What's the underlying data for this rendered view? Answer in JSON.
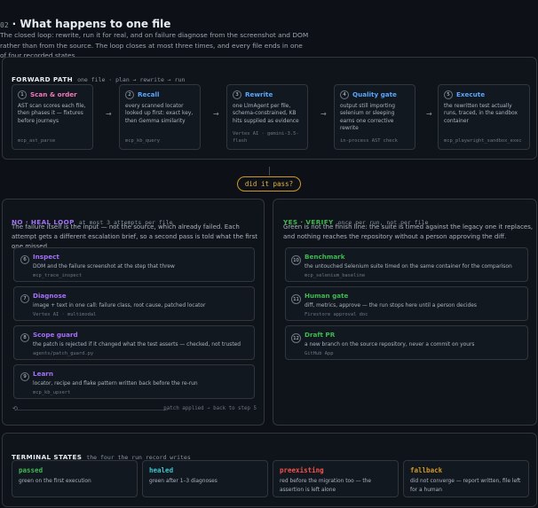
{
  "header": {
    "number": "02",
    "title": "· What happens to one file",
    "intro": "The closed loop: rewrite, run it for real, and on failure diagnose from the screenshot and DOM rather than from the source. The loop closes at most three times, and every file ends in one of four recorded states."
  },
  "forward": {
    "heading": "FORWARD PATH",
    "subtitle": "one file · plan → rewrite → run",
    "arrow_glyph": "→",
    "steps": [
      {
        "num": "1",
        "name": "Scan & order",
        "desc": "AST scan scores each file, then phases it — fixtures before journeys",
        "tool": "mcp_ast_parse"
      },
      {
        "num": "2",
        "name": "Recall",
        "desc": "every scanned locator looked up first: exact key, then Gemma similarity",
        "tool": "mcp_kb_query"
      },
      {
        "num": "3",
        "name": "Rewrite",
        "desc": "one LlmAgent per file, schema-constrained, KB hits supplied as evidence",
        "tool": "Vertex AI · gemini-3.5-flash"
      },
      {
        "num": "4",
        "name": "Quality gate",
        "desc": "output still importing selenium or sleeping earns one corrective rewrite",
        "tool": "in-process AST check"
      },
      {
        "num": "5",
        "name": "Execute",
        "desc": "the rewritten test actually runs, traced, in the sandbox container",
        "tool": "mcp_playwright_sandbox_exec"
      }
    ]
  },
  "decision": {
    "label": "did it pass?"
  },
  "heal": {
    "heading": "NO · HEAL LOOP",
    "subtitle": "at most 3 attempts per file",
    "text": "The failure itself is the input — not the source, which already failed. Each attempt gets a different escalation brief, so a second pass is told what the first one missed.",
    "steps": [
      {
        "num": "6",
        "name": "Inspect",
        "desc": "DOM and the failure screenshot at the step that threw",
        "tool": "mcp_trace_inspect"
      },
      {
        "num": "7",
        "name": "Diagnose",
        "desc": "image + text in one call: failure class, root cause, patched locator",
        "tool": "Vertex AI · multimodal"
      },
      {
        "num": "8",
        "name": "Scope guard",
        "desc": "the patch is rejected if it changed what the test asserts — checked, not trusted",
        "tool": "agents/patch_guard.py"
      },
      {
        "num": "9",
        "name": "Learn",
        "desc": "locator, recipe and flake pattern written back before the re-run",
        "tool": "mcp_kb_upsert"
      }
    ],
    "loop_glyph": "⟲",
    "loop_note": "patch applied → back to step 5"
  },
  "verify": {
    "heading": "YES · VERIFY",
    "subtitle": "once per run, not per file",
    "text": "Green is not the finish line: the suite is timed against the legacy one it replaces, and nothing reaches the repository without a person approving the diff.",
    "steps": [
      {
        "num": "10",
        "name": "Benchmark",
        "desc": "the untouched Selenium suite timed on the same container for the comparison",
        "tool": "mcp_selenium_baseline"
      },
      {
        "num": "11",
        "name": "Human gate",
        "desc": "diff, metrics, approve — the run stops here until a person decides",
        "tool": "Firestore approval doc"
      },
      {
        "num": "12",
        "name": "Draft PR",
        "desc": "a new branch on the source repository, never a commit on yours",
        "tool": "GitHub App"
      }
    ]
  },
  "terminal": {
    "heading": "TERMINAL STATES",
    "subtitle": "the four the run record writes",
    "states": [
      {
        "name": "passed",
        "desc": "green on the first execution",
        "color": "#3fb950"
      },
      {
        "name": "healed",
        "desc": "green after 1–3 diagnoses",
        "color": "#39c5cf"
      },
      {
        "name": "preexisting",
        "desc": "red before the migration too — the assertion is left alone",
        "color": "#f85149"
      },
      {
        "name": "fallback",
        "desc": "did not converge — report written, file left for a human",
        "color": "#d29922"
      }
    ]
  },
  "colors": {
    "step1": "#f778ba",
    "step2": "#58a6ff",
    "step3": "#58a6ff",
    "step4": "#58a6ff",
    "step5": "#58a6ff",
    "heal": "#a371f7",
    "verify": "#3fb950",
    "decision": "#e3b341"
  }
}
